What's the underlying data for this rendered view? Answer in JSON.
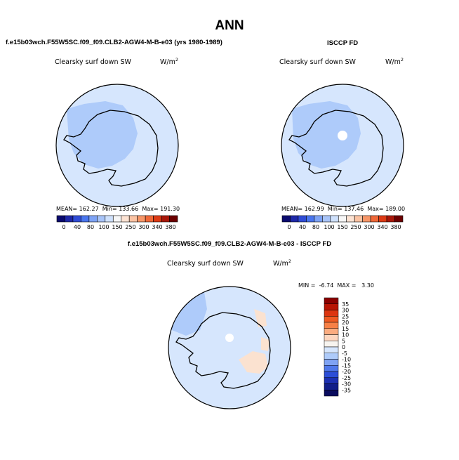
{
  "main_title": "ANN",
  "case_title": "f.e15b03wch.F55W5SC.f09_f09.CLB2-AGW4-M-B-e03 (yrs 1980-1989)",
  "obs_title": "ISCCP FD",
  "diff_title": "f.e15b03wch.F55W5SC.f09_f09.CLB2-AGW4-M-B-e03 - ISCCP FD",
  "variable": "Clearsky surf down SW",
  "units_base": "W/m",
  "units_exp": "2",
  "panel1": {
    "mean_label": "MEAN=",
    "mean": "162.27",
    "min_label": "Min=",
    "min": "133.66",
    "max_label": "Max=",
    "max": "191.30"
  },
  "panel2": {
    "mean_label": "MEAN=",
    "mean": "162.99",
    "min_label": "Min=",
    "min": "137.46",
    "max_label": "Max=",
    "max": "189.00"
  },
  "diff_stats": {
    "min_label": "MIN =",
    "min": "-6.74",
    "max_label": "MAX =",
    "max": "3.30"
  },
  "main_colorbar": {
    "labels": [
      "0",
      "40",
      "80",
      "100",
      "150",
      "250",
      "300",
      "340",
      "380"
    ],
    "colors": [
      "#0a0a6e",
      "#1e28a8",
      "#2f4cd6",
      "#4a76ee",
      "#7ea3f5",
      "#a8c4f8",
      "#cfe1fc",
      "#f7f7f7",
      "#fde3d3",
      "#fbc3a3",
      "#f79668",
      "#f06838",
      "#dd3a14",
      "#a8170a",
      "#6b0000"
    ]
  },
  "diff_colorbar": {
    "labels": [
      "35",
      "30",
      "25",
      "20",
      "15",
      "10",
      "5",
      "0",
      "-5",
      "-10",
      "-15",
      "-20",
      "-25",
      "-30",
      "-35"
    ],
    "colors": [
      "#8b0000",
      "#b81404",
      "#dc3510",
      "#ef5a22",
      "#f78046",
      "#fbac80",
      "#fdd6bf",
      "#f7f4ef",
      "#d6e6fd",
      "#aecbfa",
      "#7fa3f4",
      "#4f78ea",
      "#2c4ed7",
      "#1c30b2",
      "#111e89",
      "#0a0c5e"
    ]
  },
  "colors": {
    "ocean_fill": "#d6e6fd",
    "mid_fill": "#aecbfa",
    "warm_fill": "#fbe2d0",
    "pole_fill": "#ffffff"
  }
}
